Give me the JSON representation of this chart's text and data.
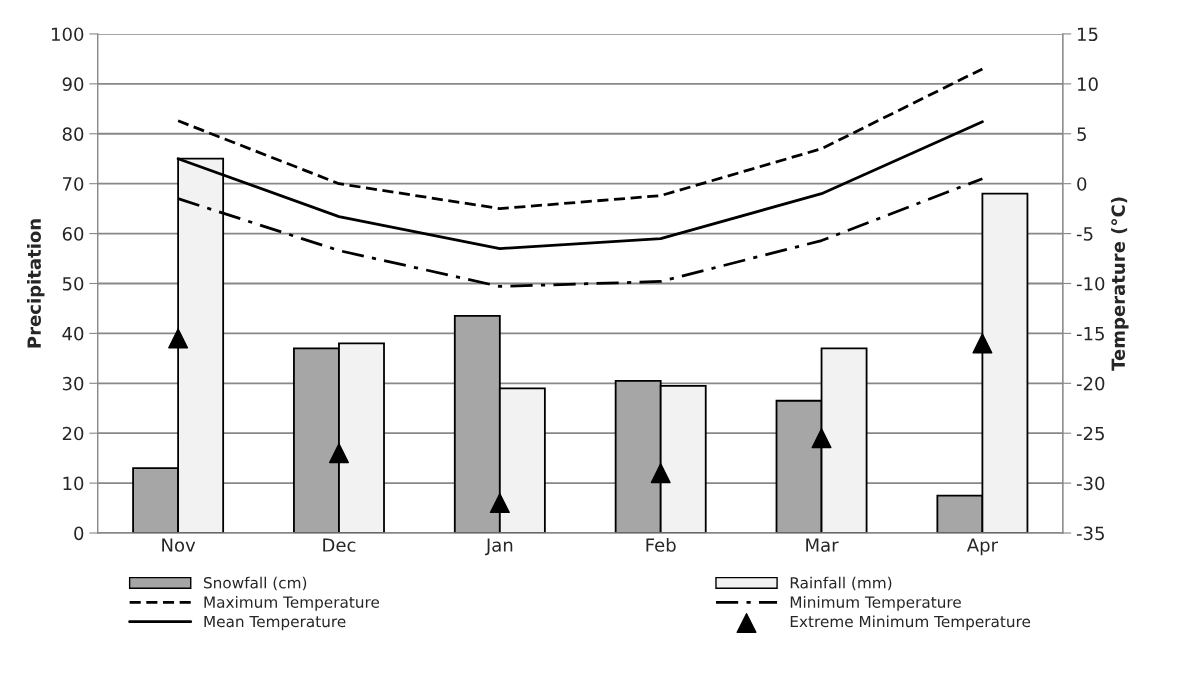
{
  "chart_data": {
    "type": "bar",
    "xlabel": null,
    "ylabel": "Precipitation",
    "y2label": "Temperature (°C)",
    "categories": [
      "Nov",
      "Dec",
      "Jan",
      "Feb",
      "Mar",
      "Apr"
    ],
    "series": [
      {
        "name": "Snowfall (cm)",
        "color": "#a6a6a6",
        "values": [
          13,
          37,
          43.5,
          30.5,
          26.5,
          7.5
        ]
      },
      {
        "name": "Maximum Temperature",
        "type": "line",
        "axis": "y2",
        "color": "#000000",
        "line_style": "dashed",
        "values": [
          6.3,
          0,
          -2.5,
          -1.2,
          3.5,
          11.5
        ]
      },
      {
        "name": "Mean Temperature",
        "type": "line",
        "axis": "y2",
        "color": "#000000",
        "line_style": "solid",
        "values": [
          2.5,
          -3.3,
          -6.5,
          -5.5,
          -1,
          6.2
        ]
      },
      {
        "name": "Rainfall (mm)",
        "color": "#f2f2f2",
        "values": [
          75,
          38,
          29,
          29.5,
          37,
          68
        ]
      },
      {
        "name": "Minimum Temperature",
        "type": "line",
        "axis": "y2",
        "color": "#000000",
        "line_style": "dashdot",
        "values": [
          -1.5,
          -6.7,
          -10.3,
          -9.8,
          -5.7,
          0.5
        ]
      },
      {
        "name": "Extreme Minimum Temperature",
        "type": "scatter",
        "axis": "y2",
        "color": "#000000",
        "marker": "triangle",
        "values": [
          -15.5,
          -27,
          -32,
          -29,
          -25.5,
          -16
        ]
      }
    ],
    "ylim": [
      0,
      100
    ],
    "yticks": [
      0,
      10,
      20,
      30,
      40,
      50,
      60,
      70,
      80,
      90,
      100
    ],
    "y2lim": [
      -35,
      15
    ],
    "y2ticks": [
      -35,
      -30,
      -25,
      -20,
      -15,
      -10,
      -5,
      0,
      5,
      10,
      15
    ],
    "grid": "y",
    "legend": "bottom"
  }
}
